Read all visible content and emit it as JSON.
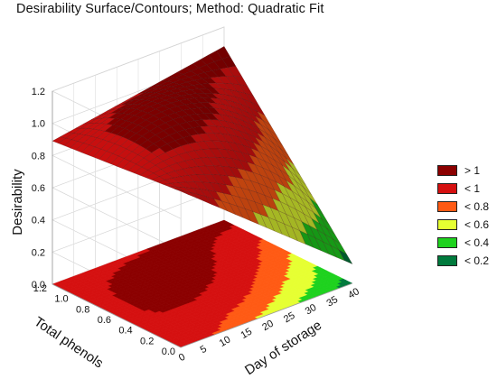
{
  "chart_data": {
    "type": "surface",
    "title": "Desirability Surface/Contours; Method: Quadratic Fit",
    "zlabel": "Desirability",
    "xlabel": "Day of storage",
    "ylabel": "Total phenols",
    "x_ticks": [
      "0",
      "5",
      "10",
      "15",
      "20",
      "25",
      "30",
      "35",
      "40"
    ],
    "y_ticks": [
      "0.0",
      "0.2",
      "0.4",
      "0.6",
      "0.8",
      "1.0",
      "1.2"
    ],
    "z_ticks": [
      "0.0",
      "0.2",
      "0.4",
      "0.6",
      "0.8",
      "1.0",
      "1.2"
    ],
    "xlim": [
      0,
      40
    ],
    "ylim": [
      0,
      1.2
    ],
    "zlim": [
      0,
      1.2
    ],
    "surface_samples": [
      {
        "day": 0,
        "phenols": 1.2,
        "desirability": 0.89
      },
      {
        "day": 0,
        "phenols": 0.0,
        "desirability": 0.97
      },
      {
        "day": 40,
        "phenols": 1.2,
        "desirability": 1.08
      },
      {
        "day": 40,
        "phenols": 0.0,
        "desirability": 0.12
      },
      {
        "day": 20,
        "phenols": 0.6,
        "desirability": 1.02
      }
    ],
    "legend": [
      {
        "label": "> 1",
        "color": "#8b0000"
      },
      {
        "label": "< 1",
        "color": "#d51010"
      },
      {
        "label": "< 0.8",
        "color": "#ff5a14"
      },
      {
        "label": "< 0.6",
        "color": "#e6ff32"
      },
      {
        "label": "< 0.4",
        "color": "#1ed21e"
      },
      {
        "label": "< 0.2",
        "color": "#007a3d"
      }
    ]
  }
}
